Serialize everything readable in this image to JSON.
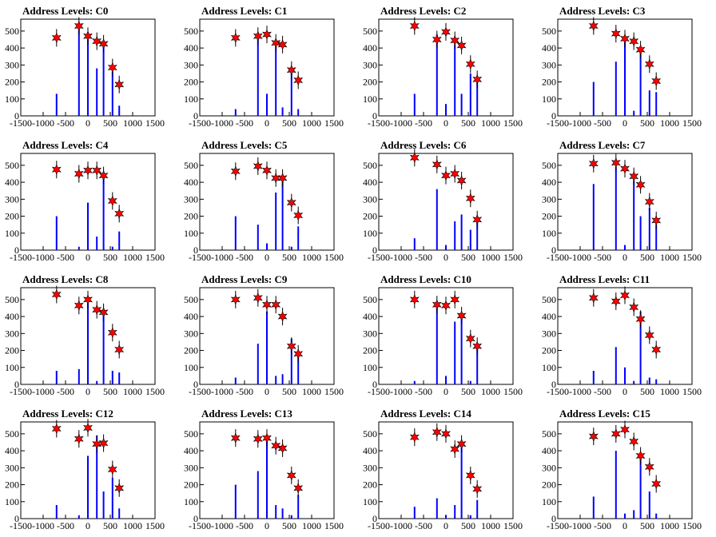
{
  "chart_data": {
    "type": "bar",
    "xlim": [
      -1500,
      1500
    ],
    "ylim": [
      0,
      570
    ],
    "xticks": [
      -1500,
      -1000,
      -500,
      0,
      500,
      1000,
      1500
    ],
    "panels": [
      {
        "title": "Address Levels: C0",
        "yticks": [
          0,
          100,
          200,
          300,
          400,
          500
        ],
        "levels": [
          -700,
          -200,
          0,
          200,
          350,
          550,
          700
        ],
        "bars": [
          130,
          510,
          495,
          280,
          420,
          260,
          60
        ],
        "stars": [
          460,
          530,
          470,
          440,
          425,
          285,
          185
        ]
      },
      {
        "title": "Address Levels: C1",
        "yticks": [
          0,
          100,
          200,
          300,
          400,
          500
        ],
        "levels": [
          -700,
          -200,
          0,
          200,
          350,
          550,
          700
        ],
        "bars": [
          40,
          490,
          130,
          450,
          50,
          250,
          40
        ],
        "stars": [
          460,
          470,
          480,
          430,
          420,
          270,
          210
        ]
      },
      {
        "title": "Address Levels: C2",
        "yticks": [
          0,
          100,
          200,
          300,
          400,
          500
        ],
        "levels": [
          -700,
          -200,
          0,
          200,
          350,
          550,
          700
        ],
        "bars": [
          130,
          480,
          70,
          420,
          130,
          250,
          210
        ],
        "stars": [
          530,
          450,
          495,
          445,
          415,
          305,
          215
        ]
      },
      {
        "title": "Address Levels: C3",
        "yticks": [
          0,
          100,
          200,
          300,
          400,
          500
        ],
        "levels": [
          -700,
          -200,
          0,
          200,
          350,
          550,
          700
        ],
        "bars": [
          200,
          320,
          440,
          30,
          380,
          150,
          140
        ],
        "stars": [
          530,
          485,
          455,
          440,
          390,
          305,
          205
        ]
      },
      {
        "title": "Address Levels: C4",
        "yticks": [
          0,
          100,
          200,
          300,
          400,
          500
        ],
        "levels": [
          -700,
          -200,
          0,
          200,
          350,
          550,
          700
        ],
        "bars": [
          200,
          20,
          280,
          80,
          420,
          20,
          110
        ],
        "stars": [
          475,
          450,
          470,
          470,
          440,
          290,
          215
        ]
      },
      {
        "title": "Address Levels: C5",
        "yticks": [
          0,
          100,
          200,
          300,
          400,
          500
        ],
        "levels": [
          -700,
          -200,
          0,
          200,
          350,
          550,
          700
        ],
        "bars": [
          200,
          150,
          40,
          340,
          410,
          20,
          140
        ],
        "stars": [
          465,
          495,
          470,
          425,
          425,
          280,
          205
        ]
      },
      {
        "title": "Address Levels: C6",
        "yticks": [
          0,
          100,
          200,
          300,
          400,
          500
        ],
        "levels": [
          -700,
          -200,
          0,
          200,
          350,
          550,
          700
        ],
        "bars": [
          70,
          360,
          30,
          170,
          210,
          120,
          200
        ],
        "stars": [
          545,
          505,
          440,
          450,
          410,
          305,
          180
        ]
      },
      {
        "title": "Address Levels: C7",
        "yticks": [
          0,
          100,
          200,
          300,
          400,
          500
        ],
        "levels": [
          -700,
          -200,
          0,
          200,
          350,
          550,
          700
        ],
        "bars": [
          390,
          490,
          30,
          410,
          200,
          250,
          150
        ],
        "stars": [
          510,
          515,
          480,
          435,
          385,
          285,
          175
        ]
      },
      {
        "title": "Address Levels: C8",
        "yticks": [
          0,
          100,
          200,
          300,
          400,
          500
        ],
        "levels": [
          -700,
          -200,
          0,
          200,
          350,
          550,
          700
        ],
        "bars": [
          80,
          90,
          480,
          20,
          410,
          80,
          70
        ],
        "stars": [
          530,
          465,
          500,
          440,
          425,
          305,
          205
        ]
      },
      {
        "title": "Address Levels: C9",
        "yticks": [
          0,
          100,
          200,
          300,
          400,
          500
        ],
        "levels": [
          -700,
          -200,
          0,
          200,
          350,
          550,
          700
        ],
        "bars": [
          40,
          240,
          430,
          50,
          60,
          270,
          200
        ],
        "stars": [
          500,
          510,
          470,
          470,
          400,
          225,
          180
        ]
      },
      {
        "title": "Address Levels: C10",
        "yticks": [
          0,
          100,
          200,
          300,
          400,
          500
        ],
        "levels": [
          -700,
          -200,
          0,
          200,
          350,
          550,
          700
        ],
        "bars": [
          20,
          470,
          50,
          370,
          410,
          20,
          230
        ],
        "stars": [
          500,
          470,
          465,
          500,
          405,
          270,
          225
        ]
      },
      {
        "title": "Address Levels: C11",
        "yticks": [
          0,
          100,
          200,
          300,
          400,
          500
        ],
        "levels": [
          -700,
          -200,
          0,
          200,
          350,
          550,
          700
        ],
        "bars": [
          80,
          220,
          100,
          20,
          430,
          40,
          30
        ],
        "stars": [
          510,
          490,
          525,
          455,
          385,
          290,
          205
        ]
      },
      {
        "title": "Address Levels: C12",
        "yticks": [
          0,
          100,
          200,
          300,
          400,
          500
        ],
        "levels": [
          -700,
          -200,
          0,
          200,
          350,
          550,
          700
        ],
        "bars": [
          80,
          20,
          370,
          490,
          160,
          240,
          60
        ],
        "stars": [
          530,
          470,
          535,
          440,
          445,
          290,
          180
        ]
      },
      {
        "title": "Address Levels: C13",
        "yticks": [
          0,
          100,
          200,
          300,
          400,
          500
        ],
        "levels": [
          -700,
          -200,
          0,
          200,
          350,
          550,
          700
        ],
        "bars": [
          200,
          280,
          460,
          80,
          60,
          20,
          140
        ],
        "stars": [
          475,
          470,
          475,
          430,
          415,
          255,
          180
        ]
      },
      {
        "title": "Address Levels: C14",
        "yticks": [
          0,
          100,
          200,
          300,
          400,
          500
        ],
        "levels": [
          -700,
          -200,
          0,
          200,
          350,
          550,
          700
        ],
        "bars": [
          70,
          120,
          20,
          80,
          430,
          20,
          110
        ],
        "stars": [
          480,
          510,
          500,
          410,
          440,
          255,
          175
        ]
      },
      {
        "title": "Address Levels: C15",
        "yticks": [
          0,
          100,
          200,
          300,
          400,
          500
        ],
        "levels": [
          -700,
          -200,
          0,
          200,
          350,
          550,
          700
        ],
        "bars": [
          130,
          400,
          30,
          50,
          370,
          160,
          30
        ],
        "stars": [
          485,
          500,
          525,
          455,
          370,
          305,
          205
        ]
      }
    ]
  }
}
